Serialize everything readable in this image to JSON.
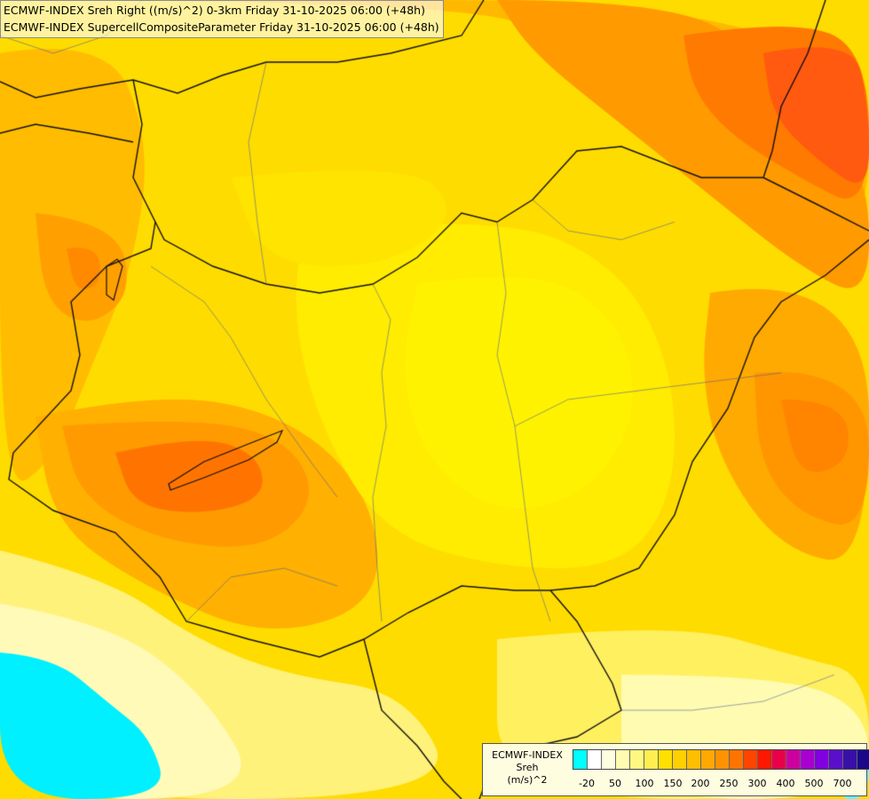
{
  "titles": {
    "line1": "ECMWF-INDEX Sreh Right ((m/s)^2) 0-3km Friday 31-10-2025 06:00 (+48h)",
    "line2": "ECMWF-INDEX SupercellCompositeParameter Friday 31-10-2025 06:00 (+48h)"
  },
  "legend": {
    "line1": "ECMWF-INDEX",
    "line2": "Sreh",
    "line3": "(m/s)^2",
    "tick_labels": [
      "-20",
      "50",
      "100",
      "150",
      "200",
      "250",
      "300",
      "400",
      "500",
      "700"
    ],
    "colors": [
      "#00ffff",
      "#ffffff",
      "#fffde0",
      "#fffbb0",
      "#fff880",
      "#ffee50",
      "#ffe000",
      "#ffd000",
      "#ffbe00",
      "#ffa800",
      "#ff9200",
      "#ff7400",
      "#ff4400",
      "#ff1800",
      "#e80048",
      "#cc00a0",
      "#a800d0",
      "#8000e0",
      "#5a10c8",
      "#3810a8",
      "#1a0888"
    ]
  }
}
